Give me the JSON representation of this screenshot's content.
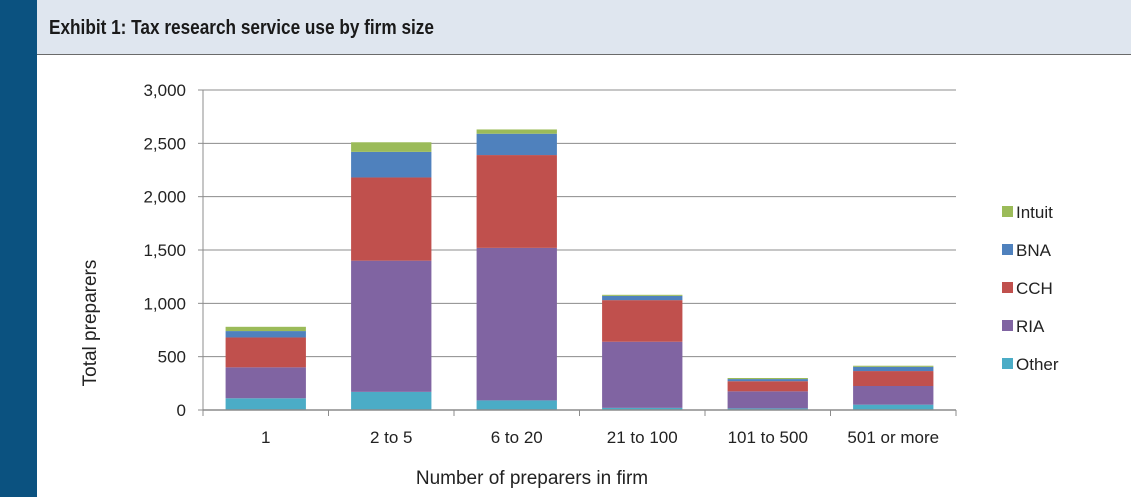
{
  "header": {
    "title": "Exhibit 1: Tax research service use by firm size"
  },
  "colors": {
    "Other": "#4bacc6",
    "RIA": "#8064a2",
    "CCH": "#c0504d",
    "BNA": "#4f81bd",
    "Intuit": "#9bbb59",
    "accent_bar": "#0b5280",
    "header_bg": "#dfe6ef"
  },
  "chart_data": {
    "type": "bar",
    "stacked": true,
    "title": "",
    "xlabel": "Number of preparers in firm",
    "ylabel": "Total preparers",
    "ylim": [
      0,
      3000
    ],
    "yticks": [
      0,
      500,
      1000,
      1500,
      2000,
      2500,
      3000
    ],
    "ytick_labels": [
      "0",
      "500",
      "1,000",
      "1,500",
      "2,000",
      "2,500",
      "3,000"
    ],
    "grid": true,
    "legend": "right",
    "categories": [
      "1",
      "2 to 5",
      "6 to 20",
      "21 to 100",
      "101 to 500",
      "501 or more"
    ],
    "series": [
      {
        "name": "Other",
        "values": [
          110,
          170,
          90,
          20,
          15,
          50
        ]
      },
      {
        "name": "RIA",
        "values": [
          290,
          1230,
          1430,
          620,
          160,
          175
        ]
      },
      {
        "name": "CCH",
        "values": [
          280,
          780,
          870,
          390,
          95,
          140
        ]
      },
      {
        "name": "BNA",
        "values": [
          60,
          240,
          200,
          40,
          20,
          40
        ]
      },
      {
        "name": "Intuit",
        "values": [
          40,
          90,
          40,
          10,
          10,
          10
        ]
      }
    ],
    "legend_order": [
      "Intuit",
      "BNA",
      "CCH",
      "RIA",
      "Other"
    ]
  }
}
